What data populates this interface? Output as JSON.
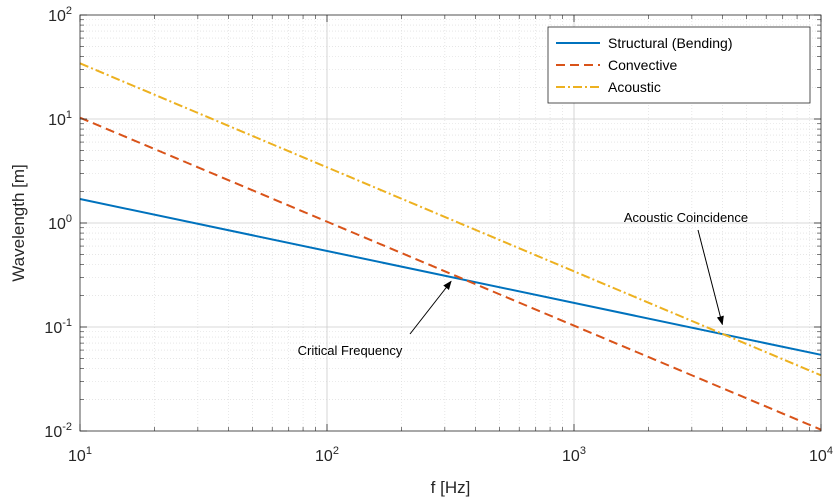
{
  "chart_data": {
    "type": "line",
    "xscale": "log",
    "yscale": "log",
    "xlim": [
      10,
      10000
    ],
    "ylim": [
      0.01,
      100
    ],
    "xlabel": "f [Hz]",
    "ylabel": "Wavelength [m]",
    "grid": true,
    "minor_grid": true,
    "legend_position": "top-right",
    "xticks": [
      {
        "base": "10",
        "exp": "1",
        "value": 10
      },
      {
        "base": "10",
        "exp": "2",
        "value": 100
      },
      {
        "base": "10",
        "exp": "3",
        "value": 1000
      },
      {
        "base": "10",
        "exp": "4",
        "value": 10000
      }
    ],
    "yticks": [
      {
        "base": "10",
        "exp": "-2",
        "value": 0.01
      },
      {
        "base": "10",
        "exp": "-1",
        "value": 0.1
      },
      {
        "base": "10",
        "exp": "0",
        "value": 1
      },
      {
        "base": "10",
        "exp": "1",
        "value": 10
      },
      {
        "base": "10",
        "exp": "2",
        "value": 100
      }
    ],
    "series": [
      {
        "name": "Structural (Bending)",
        "color": "#0072BD",
        "style": "solid",
        "x": [
          10,
          10000
        ],
        "y": [
          1.7,
          0.054
        ]
      },
      {
        "name": "Convective",
        "color": "#D95319",
        "style": "dashed",
        "x": [
          10,
          10000
        ],
        "y": [
          10.3,
          0.0103
        ]
      },
      {
        "name": "Acoustic",
        "color": "#EDB120",
        "style": "dashdot",
        "x": [
          10,
          10000
        ],
        "y": [
          34.3,
          0.0343
        ]
      }
    ],
    "annotations": [
      {
        "text": "Critical Frequency",
        "x": 330,
        "y": 0.3
      },
      {
        "text": "Acoustic Coincidence",
        "x": 4100,
        "y": 0.085
      }
    ]
  }
}
